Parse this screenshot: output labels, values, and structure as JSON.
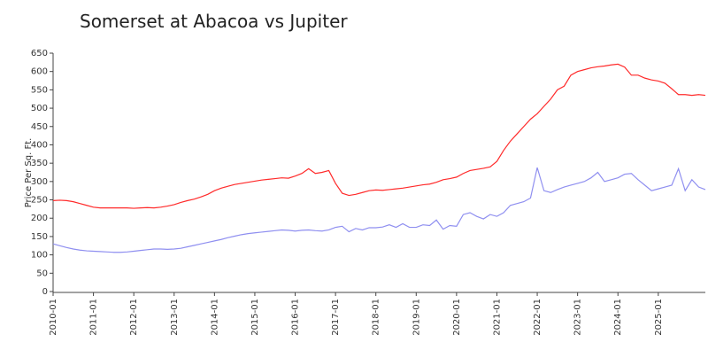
{
  "chart_data": {
    "type": "line",
    "title": "Somerset at Abacoa vs Jupiter",
    "y_label": "Price Per Sq. Ft.",
    "x": [
      "2010-01",
      "2010-03",
      "2010-05",
      "2010-07",
      "2010-09",
      "2010-11",
      "2011-01",
      "2011-03",
      "2011-05",
      "2011-07",
      "2011-09",
      "2011-11",
      "2012-01",
      "2012-03",
      "2012-05",
      "2012-07",
      "2012-09",
      "2012-11",
      "2013-01",
      "2013-03",
      "2013-05",
      "2013-07",
      "2013-09",
      "2013-11",
      "2014-01",
      "2014-03",
      "2014-05",
      "2014-07",
      "2014-09",
      "2014-11",
      "2015-01",
      "2015-03",
      "2015-05",
      "2015-07",
      "2015-09",
      "2015-11",
      "2016-01",
      "2016-03",
      "2016-05",
      "2016-07",
      "2016-09",
      "2016-11",
      "2017-01",
      "2017-03",
      "2017-05",
      "2017-07",
      "2017-09",
      "2017-11",
      "2018-01",
      "2018-03",
      "2018-05",
      "2018-07",
      "2018-09",
      "2018-11",
      "2019-01",
      "2019-03",
      "2019-05",
      "2019-07",
      "2019-09",
      "2019-11",
      "2020-01",
      "2020-03",
      "2020-05",
      "2020-07",
      "2020-09",
      "2020-11",
      "2021-01",
      "2021-03",
      "2021-05",
      "2021-07",
      "2021-09",
      "2021-11",
      "2022-01",
      "2022-03",
      "2022-05",
      "2022-07",
      "2022-09",
      "2022-11",
      "2023-01",
      "2023-03",
      "2023-05",
      "2023-07",
      "2023-09",
      "2023-11",
      "2024-01",
      "2024-03",
      "2024-05",
      "2024-07",
      "2024-09",
      "2024-11",
      "2025-01",
      "2025-03",
      "2025-05",
      "2025-07",
      "2025-09",
      "2025-11",
      "2026-01",
      "2026-03"
    ],
    "series": [
      {
        "color": "#ff2a2a",
        "values": [
          248,
          249,
          248,
          245,
          240,
          235,
          230,
          228,
          228,
          228,
          228,
          228,
          227,
          228,
          229,
          228,
          230,
          233,
          237,
          243,
          248,
          252,
          258,
          265,
          275,
          282,
          287,
          292,
          295,
          298,
          301,
          304,
          306,
          308,
          310,
          309,
          315,
          322,
          335,
          322,
          325,
          330,
          295,
          268,
          262,
          265,
          270,
          275,
          277,
          276,
          278,
          280,
          282,
          285,
          288,
          291,
          293,
          298,
          305,
          308,
          312,
          322,
          330,
          333,
          336,
          340,
          355,
          385,
          410,
          430,
          450,
          470,
          485,
          505,
          525,
          550,
          560,
          590,
          600,
          605,
          610,
          613,
          615,
          618,
          620,
          612,
          590,
          590,
          582,
          577,
          574,
          568,
          553,
          537,
          537,
          535,
          537,
          535
        ]
      },
      {
        "color": "#8f8ff0",
        "values": [
          130,
          125,
          120,
          116,
          113,
          111,
          110,
          109,
          108,
          107,
          107,
          108,
          110,
          112,
          114,
          116,
          116,
          115,
          116,
          118,
          122,
          126,
          130,
          134,
          138,
          142,
          147,
          151,
          155,
          158,
          160,
          162,
          164,
          166,
          168,
          167,
          165,
          167,
          168,
          166,
          165,
          168,
          175,
          178,
          163,
          172,
          168,
          174,
          174,
          176,
          182,
          175,
          185,
          175,
          175,
          182,
          180,
          195,
          170,
          180,
          178,
          210,
          215,
          205,
          198,
          210,
          205,
          215,
          235,
          240,
          245,
          255,
          338,
          275,
          270,
          278,
          285,
          290,
          295,
          300,
          310,
          325,
          300,
          305,
          310,
          320,
          322,
          305,
          290,
          275,
          280,
          285,
          290,
          335,
          275,
          305,
          285,
          278
        ]
      }
    ],
    "xlim": [
      "2010-01",
      "2026-03"
    ],
    "xticks": [
      "2010-01",
      "2011-01",
      "2012-01",
      "2013-01",
      "2014-01",
      "2015-01",
      "2016-01",
      "2017-01",
      "2018-01",
      "2019-01",
      "2020-01",
      "2021-01",
      "2022-01",
      "2023-01",
      "2024-01",
      "2025-01"
    ],
    "ylim": [
      0,
      650
    ],
    "yticks": [
      0,
      50,
      100,
      150,
      200,
      250,
      300,
      350,
      400,
      450,
      500,
      550,
      600,
      650
    ]
  }
}
